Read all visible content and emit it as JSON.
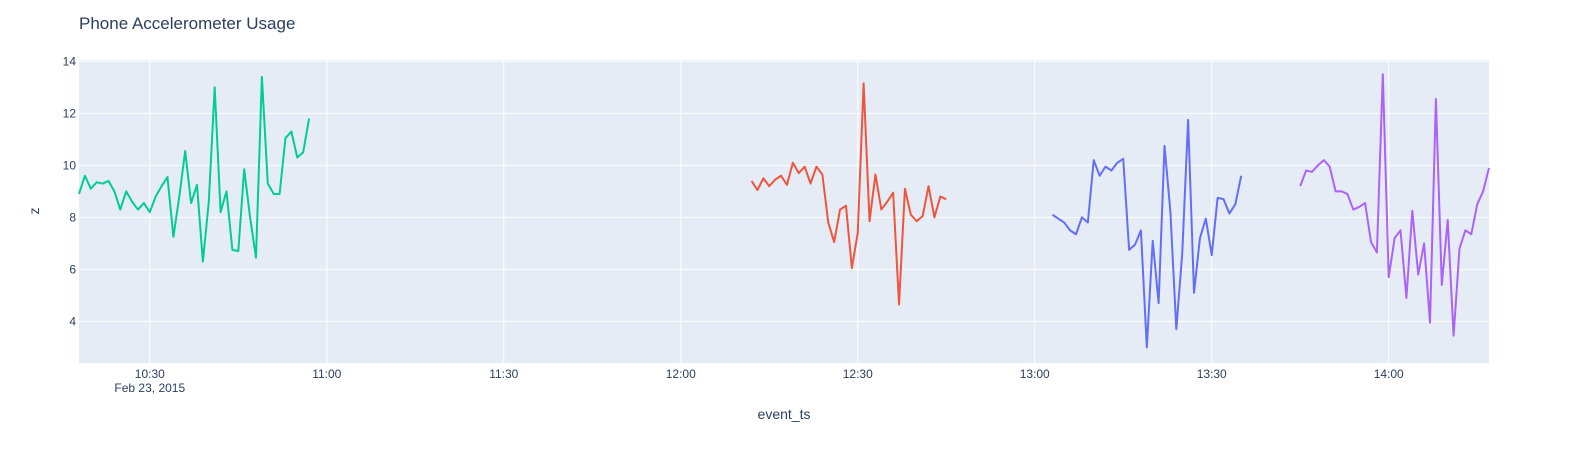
{
  "chart_data": {
    "type": "line",
    "title": "Phone Accelerometer Usage",
    "x_label": "event_ts",
    "y_label": "z",
    "xlim": [
      "2015-02-23 10:18",
      "2015-02-23 14:17"
    ],
    "xticks": [
      {
        "value": "2015-02-23 10:30",
        "label": "10:30"
      },
      {
        "value": "2015-02-23 11:00",
        "label": "11:00"
      },
      {
        "value": "2015-02-23 11:30",
        "label": "11:30"
      },
      {
        "value": "2015-02-23 12:00",
        "label": "12:00"
      },
      {
        "value": "2015-02-23 12:30",
        "label": "12:30"
      },
      {
        "value": "2015-02-23 13:00",
        "label": "13:00"
      },
      {
        "value": "2015-02-23 13:30",
        "label": "13:30"
      },
      {
        "value": "2015-02-23 14:00",
        "label": "14:00"
      }
    ],
    "xtick_date": "Feb 23, 2015",
    "ylim": [
      2.4,
      14.05
    ],
    "yticks": [
      4,
      6,
      8,
      10,
      12,
      14
    ],
    "grid": true,
    "series": [
      {
        "color": "#00cc96",
        "x": [
          "2015-02-23 10:18",
          "2015-02-23 10:19",
          "2015-02-23 10:20",
          "2015-02-23 10:21",
          "2015-02-23 10:22",
          "2015-02-23 10:23",
          "2015-02-23 10:24",
          "2015-02-23 10:25",
          "2015-02-23 10:26",
          "2015-02-23 10:27",
          "2015-02-23 10:28",
          "2015-02-23 10:29",
          "2015-02-23 10:30",
          "2015-02-23 10:31",
          "2015-02-23 10:32",
          "2015-02-23 10:33",
          "2015-02-23 10:34",
          "2015-02-23 10:35",
          "2015-02-23 10:36",
          "2015-02-23 10:37",
          "2015-02-23 10:38",
          "2015-02-23 10:39",
          "2015-02-23 10:40",
          "2015-02-23 10:41",
          "2015-02-23 10:42",
          "2015-02-23 10:43",
          "2015-02-23 10:44",
          "2015-02-23 10:45",
          "2015-02-23 10:46",
          "2015-02-23 10:47",
          "2015-02-23 10:48",
          "2015-02-23 10:49",
          "2015-02-23 10:50",
          "2015-02-23 10:51",
          "2015-02-23 10:52",
          "2015-02-23 10:53",
          "2015-02-23 10:54",
          "2015-02-23 10:55",
          "2015-02-23 10:56",
          "2015-02-23 10:57"
        ],
        "values": [
          8.9,
          9.6,
          9.1,
          9.35,
          9.3,
          9.4,
          9.0,
          8.3,
          9.0,
          8.6,
          8.3,
          8.55,
          8.2,
          8.8,
          9.2,
          9.55,
          7.25,
          8.8,
          10.55,
          8.55,
          9.25,
          6.3,
          8.6,
          13.0,
          8.2,
          9.0,
          6.75,
          6.7,
          9.85,
          8.0,
          6.45,
          13.4,
          9.3,
          8.9,
          8.9,
          11.05,
          11.3,
          10.3,
          10.5,
          11.8
        ]
      },
      {
        "color": "#ef553b",
        "x": [
          "2015-02-23 12:12",
          "2015-02-23 12:13",
          "2015-02-23 12:14",
          "2015-02-23 12:15",
          "2015-02-23 12:16",
          "2015-02-23 12:17",
          "2015-02-23 12:18",
          "2015-02-23 12:19",
          "2015-02-23 12:20",
          "2015-02-23 12:21",
          "2015-02-23 12:22",
          "2015-02-23 12:23",
          "2015-02-23 12:24",
          "2015-02-23 12:25",
          "2015-02-23 12:26",
          "2015-02-23 12:27",
          "2015-02-23 12:28",
          "2015-02-23 12:29",
          "2015-02-23 12:30",
          "2015-02-23 12:31",
          "2015-02-23 12:32",
          "2015-02-23 12:33",
          "2015-02-23 12:34",
          "2015-02-23 12:35",
          "2015-02-23 12:36",
          "2015-02-23 12:37",
          "2015-02-23 12:38",
          "2015-02-23 12:39",
          "2015-02-23 12:40",
          "2015-02-23 12:41",
          "2015-02-23 12:42",
          "2015-02-23 12:43",
          "2015-02-23 12:44",
          "2015-02-23 12:45"
        ],
        "values": [
          9.4,
          9.05,
          9.5,
          9.2,
          9.45,
          9.6,
          9.25,
          10.1,
          9.7,
          9.95,
          9.3,
          9.95,
          9.65,
          7.8,
          7.05,
          8.3,
          8.45,
          6.05,
          7.4,
          13.15,
          7.85,
          9.65,
          8.3,
          8.6,
          8.95,
          4.65,
          9.1,
          8.1,
          7.85,
          8.05,
          9.2,
          8.0,
          8.8,
          8.7
        ]
      },
      {
        "color": "#636efa",
        "x": [
          "2015-02-23 13:03",
          "2015-02-23 13:04",
          "2015-02-23 13:05",
          "2015-02-23 13:06",
          "2015-02-23 13:07",
          "2015-02-23 13:08",
          "2015-02-23 13:09",
          "2015-02-23 13:10",
          "2015-02-23 13:11",
          "2015-02-23 13:12",
          "2015-02-23 13:13",
          "2015-02-23 13:14",
          "2015-02-23 13:15",
          "2015-02-23 13:16",
          "2015-02-23 13:17",
          "2015-02-23 13:18",
          "2015-02-23 13:19",
          "2015-02-23 13:20",
          "2015-02-23 13:21",
          "2015-02-23 13:22",
          "2015-02-23 13:23",
          "2015-02-23 13:24",
          "2015-02-23 13:25",
          "2015-02-23 13:26",
          "2015-02-23 13:27",
          "2015-02-23 13:28",
          "2015-02-23 13:29",
          "2015-02-23 13:30",
          "2015-02-23 13:31",
          "2015-02-23 13:32",
          "2015-02-23 13:33",
          "2015-02-23 13:34",
          "2015-02-23 13:35"
        ],
        "values": [
          8.1,
          7.95,
          7.8,
          7.5,
          7.35,
          8.0,
          7.8,
          10.2,
          9.6,
          9.95,
          9.8,
          10.1,
          10.25,
          6.75,
          6.95,
          7.5,
          3.0,
          7.1,
          4.7,
          10.75,
          8.2,
          3.7,
          6.6,
          11.75,
          5.1,
          7.2,
          7.95,
          6.55,
          8.75,
          8.7,
          8.15,
          8.5,
          9.6
        ]
      },
      {
        "color": "#ab63fa",
        "x": [
          "2015-02-23 13:45",
          "2015-02-23 13:46",
          "2015-02-23 13:47",
          "2015-02-23 13:48",
          "2015-02-23 13:49",
          "2015-02-23 13:50",
          "2015-02-23 13:51",
          "2015-02-23 13:52",
          "2015-02-23 13:53",
          "2015-02-23 13:54",
          "2015-02-23 13:55",
          "2015-02-23 13:56",
          "2015-02-23 13:57",
          "2015-02-23 13:58",
          "2015-02-23 13:59",
          "2015-02-23 14:00",
          "2015-02-23 14:01",
          "2015-02-23 14:02",
          "2015-02-23 14:03",
          "2015-02-23 14:04",
          "2015-02-23 14:05",
          "2015-02-23 14:06",
          "2015-02-23 14:07",
          "2015-02-23 14:08",
          "2015-02-23 14:09",
          "2015-02-23 14:10",
          "2015-02-23 14:11",
          "2015-02-23 14:12",
          "2015-02-23 14:13",
          "2015-02-23 14:14",
          "2015-02-23 14:15",
          "2015-02-23 14:16",
          "2015-02-23 14:17"
        ],
        "values": [
          9.2,
          9.8,
          9.75,
          10.0,
          10.2,
          9.95,
          9.0,
          9.0,
          8.9,
          8.3,
          8.4,
          8.55,
          7.05,
          6.65,
          13.5,
          5.7,
          7.2,
          7.5,
          4.9,
          8.25,
          5.8,
          7.0,
          3.95,
          12.55,
          5.4,
          7.9,
          3.45,
          6.8,
          7.5,
          7.35,
          8.5,
          9.0,
          9.9
        ]
      }
    ]
  }
}
